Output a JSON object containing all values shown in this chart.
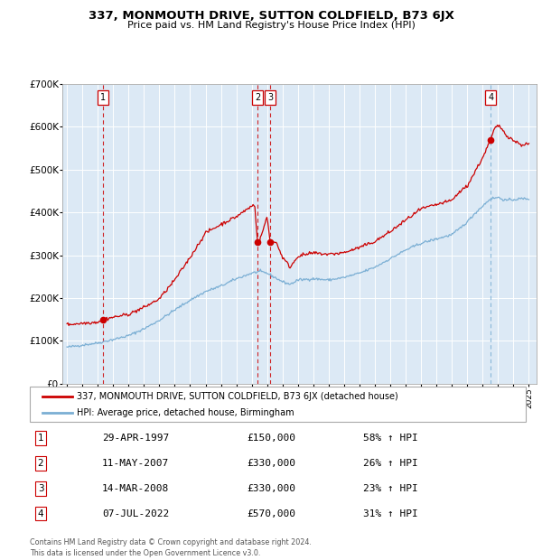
{
  "title": "337, MONMOUTH DRIVE, SUTTON COLDFIELD, B73 6JX",
  "subtitle": "Price paid vs. HM Land Registry's House Price Index (HPI)",
  "legend_line1": "337, MONMOUTH DRIVE, SUTTON COLDFIELD, B73 6JX (detached house)",
  "legend_line2": "HPI: Average price, detached house, Birmingham",
  "footer": "Contains HM Land Registry data © Crown copyright and database right 2024.\nThis data is licensed under the Open Government Licence v3.0.",
  "transactions": [
    {
      "num": 1,
      "date": "29-APR-1997",
      "price": 150000,
      "pct": "58%",
      "year": 1997.33
    },
    {
      "num": 2,
      "date": "11-MAY-2007",
      "price": 330000,
      "pct": "26%",
      "year": 2007.37
    },
    {
      "num": 3,
      "date": "14-MAR-2008",
      "price": 330000,
      "pct": "23%",
      "year": 2008.2
    },
    {
      "num": 4,
      "date": "07-JUL-2022",
      "price": 570000,
      "pct": "31%",
      "year": 2022.52
    }
  ],
  "table_rows": [
    {
      "num": 1,
      "date": "29-APR-1997",
      "price": "£150,000",
      "pct": "58% ↑ HPI"
    },
    {
      "num": 2,
      "date": "11-MAY-2007",
      "price": "£330,000",
      "pct": "26% ↑ HPI"
    },
    {
      "num": 3,
      "date": "14-MAR-2008",
      "price": "£330,000",
      "pct": "23% ↑ HPI"
    },
    {
      "num": 4,
      "date": "07-JUL-2022",
      "price": "£570,000",
      "pct": "31% ↑ HPI"
    }
  ],
  "red_color": "#cc0000",
  "blue_color": "#7bafd4",
  "bg_color": "#dce9f5",
  "grid_color": "#ffffff",
  "ylim": [
    0,
    700000
  ],
  "yticks": [
    0,
    100000,
    200000,
    300000,
    400000,
    500000,
    600000,
    700000
  ],
  "ytick_labels": [
    "£0",
    "£100K",
    "£200K",
    "£300K",
    "£400K",
    "£500K",
    "£600K",
    "£700K"
  ],
  "xlim_start": 1994.7,
  "xlim_end": 2025.5,
  "xticks": [
    1995,
    1996,
    1997,
    1998,
    1999,
    2000,
    2001,
    2002,
    2003,
    2004,
    2005,
    2006,
    2007,
    2008,
    2009,
    2010,
    2011,
    2012,
    2013,
    2014,
    2015,
    2016,
    2017,
    2018,
    2019,
    2020,
    2021,
    2022,
    2023,
    2024,
    2025
  ]
}
